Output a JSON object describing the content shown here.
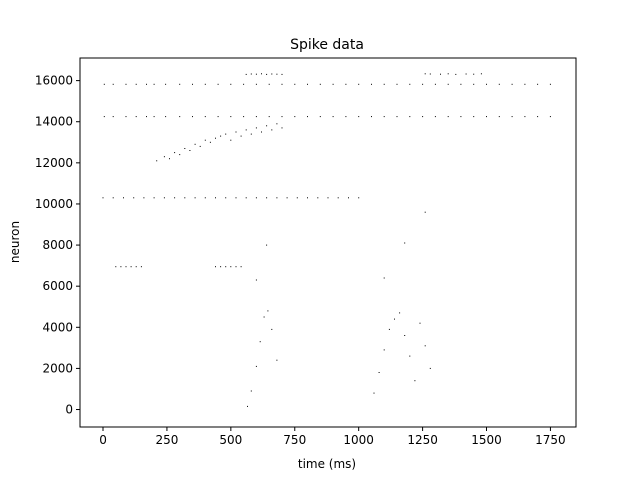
{
  "chart_data": {
    "type": "scatter",
    "title": "Spike data",
    "xlabel": "time (ms)",
    "ylabel": "neuron",
    "xlim": [
      -90,
      1850
    ],
    "ylim": [
      -850,
      17100
    ],
    "xticks": [
      0,
      250,
      500,
      750,
      1000,
      1250,
      1500,
      1750
    ],
    "yticks": [
      0,
      2000,
      4000,
      6000,
      8000,
      10000,
      12000,
      14000,
      16000
    ],
    "marker_color": "#000000",
    "grid": false,
    "legend": "none",
    "series": [
      {
        "x": [
          5,
          40,
          90,
          130,
          170,
          200,
          245,
          300,
          350,
          400,
          450,
          500,
          550,
          600,
          650,
          700,
          750,
          800,
          850,
          900,
          950,
          1000,
          1050,
          1100,
          1150,
          1200,
          1250,
          1300,
          1350,
          1400,
          1450,
          1500,
          1550,
          1600,
          1650,
          1700,
          1750
        ],
        "y": [
          15820,
          15820,
          15820,
          15820,
          15820,
          15820,
          15820,
          15820,
          15820,
          15820,
          15820,
          15820,
          15820,
          15820,
          15820,
          15820,
          15820,
          15820,
          15820,
          15820,
          15820,
          15820,
          15820,
          15820,
          15820,
          15820,
          15820,
          15820,
          15820,
          15820,
          15820,
          15820,
          15820,
          15820,
          15820,
          15820,
          15820
        ]
      },
      {
        "x": [
          5,
          40,
          90,
          130,
          170,
          200,
          245,
          300,
          350,
          400,
          450,
          500,
          550,
          600,
          650,
          700,
          750,
          800,
          850,
          900,
          950,
          1000,
          1050,
          1100,
          1150,
          1200,
          1250,
          1300,
          1350,
          1400,
          1450,
          1500,
          1550,
          1600,
          1650,
          1700,
          1750
        ],
        "y": [
          14250,
          14250,
          14250,
          14250,
          14250,
          14250,
          14250,
          14250,
          14250,
          14250,
          14250,
          14250,
          14250,
          14250,
          14250,
          14250,
          14250,
          14250,
          14250,
          14250,
          14250,
          14250,
          14250,
          14250,
          14250,
          14250,
          14250,
          14250,
          14250,
          14250,
          14250,
          14250,
          14250,
          14250,
          14250,
          14250,
          14250
        ]
      },
      {
        "x": [
          565,
          580,
          600,
          615,
          630,
          645,
          660,
          680,
          600,
          640,
          1060,
          1080,
          1100,
          1120,
          1140,
          1160,
          1180,
          1200,
          1220,
          1240,
          1260,
          1280,
          1100,
          1180,
          1260
        ],
        "y": [
          150,
          900,
          2100,
          3300,
          4500,
          4800,
          3900,
          2400,
          6300,
          8000,
          800,
          1800,
          2900,
          3900,
          4400,
          4700,
          3600,
          2600,
          1400,
          4200,
          3100,
          2000,
          6400,
          8100,
          9600
        ]
      },
      {
        "x": [
          210,
          240,
          260,
          280,
          300,
          320,
          340,
          360,
          380,
          400,
          420,
          440,
          460,
          480,
          500,
          520,
          540,
          560,
          580,
          600,
          620,
          640,
          660,
          680,
          700
        ],
        "y": [
          12100,
          12300,
          12200,
          12500,
          12400,
          12700,
          12600,
          12900,
          12800,
          13100,
          13000,
          13200,
          13300,
          13400,
          13100,
          13500,
          13300,
          13600,
          13400,
          13700,
          13500,
          13800,
          13600,
          13900,
          13700
        ]
      },
      {
        "x": [
          0,
          40,
          80,
          120,
          160,
          200,
          240,
          280,
          320,
          360,
          400,
          440,
          480,
          520,
          560,
          600,
          640,
          680,
          720,
          760,
          800,
          840,
          880,
          920,
          960,
          1000
        ],
        "y": [
          10300,
          10300,
          10300,
          10300,
          10300,
          10300,
          10300,
          10300,
          10300,
          10300,
          10300,
          10300,
          10300,
          10300,
          10300,
          10300,
          10300,
          10300,
          10300,
          10300,
          10300,
          10300,
          10300,
          10300,
          10300,
          10300
        ]
      },
      {
        "x": [
          50,
          70,
          90,
          110,
          130,
          150,
          440,
          460,
          480,
          500,
          520,
          540
        ],
        "y": [
          6950,
          6950,
          6950,
          6950,
          6950,
          6950,
          6950,
          6950,
          6950,
          6950,
          6950,
          6950
        ]
      },
      {
        "x": [
          560,
          580,
          600,
          620,
          640,
          660,
          680,
          700,
          1260,
          1280,
          1320,
          1350,
          1380,
          1420,
          1450,
          1480
        ],
        "y": [
          16300,
          16320,
          16310,
          16330,
          16300,
          16320,
          16310,
          16300,
          16330,
          16320,
          16310,
          16330,
          16300,
          16320,
          16310,
          16330
        ]
      }
    ]
  }
}
